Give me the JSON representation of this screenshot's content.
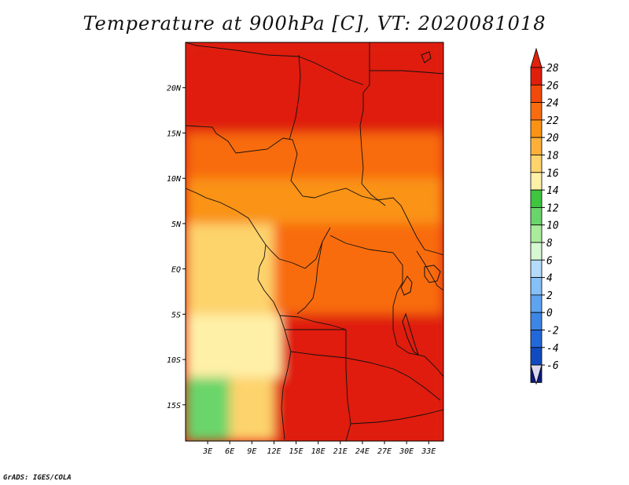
{
  "chart_data": {
    "type": "heatmap",
    "title": "Temperature at 900hPa [C], VT: 2020081018",
    "x_axis": {
      "ticks": [
        3,
        6,
        9,
        12,
        15,
        18,
        21,
        24,
        27,
        30,
        33
      ],
      "labels": [
        "3E",
        "6E",
        "9E",
        "12E",
        "15E",
        "18E",
        "21E",
        "24E",
        "27E",
        "30E",
        "33E"
      ],
      "range": [
        0,
        35
      ]
    },
    "y_axis": {
      "ticks": [
        20,
        15,
        10,
        5,
        0,
        -5,
        -10,
        -15
      ],
      "labels": [
        "20N",
        "15N",
        "10N",
        "5N",
        "EQ",
        "5S",
        "10S",
        "15S"
      ],
      "range": [
        -19,
        25
      ]
    },
    "colorbar": {
      "labels": [
        "28",
        "26",
        "24",
        "22",
        "20",
        "18",
        "16",
        "14",
        "12",
        "10",
        "8",
        "6",
        "4",
        "2",
        "0",
        "-2",
        "-4",
        "-6"
      ],
      "colors_top_to_bottom": [
        "#df1f0b",
        "#f24a0b",
        "#f86c10",
        "#fa9315",
        "#fcb03a",
        "#fdd36c",
        "#fff0a7",
        "#3fc53f",
        "#6ad56a",
        "#a9ec9a",
        "#d6f9d4",
        "#b4dcfa",
        "#85c0f6",
        "#5ea3f0",
        "#3d86e6",
        "#2368d8",
        "#124bc0",
        "#0b1b80"
      ],
      "over_color": "#e0220b",
      "under_color": "#dcd8f0"
    },
    "field": {
      "units": "C",
      "regions": [
        {
          "lat": [
            15,
            25
          ],
          "lon": [
            0,
            35
          ],
          "value": 27
        },
        {
          "lat": [
            10,
            15
          ],
          "lon": [
            0,
            35
          ],
          "value": 23
        },
        {
          "lat": [
            5,
            10
          ],
          "lon": [
            0,
            35
          ],
          "value": 21
        },
        {
          "lat": [
            -5,
            5
          ],
          "lon": [
            0,
            12
          ],
          "value": 17
        },
        {
          "lat": [
            -5,
            5
          ],
          "lon": [
            12,
            35
          ],
          "value": 23
        },
        {
          "lat": [
            -12,
            -5
          ],
          "lon": [
            0,
            13
          ],
          "value": 14
        },
        {
          "lat": [
            -12,
            -5
          ],
          "lon": [
            13,
            35
          ],
          "value": 26
        },
        {
          "lat": [
            -19,
            -12
          ],
          "lon": [
            0,
            6
          ],
          "value": 10
        },
        {
          "lat": [
            -19,
            -12
          ],
          "lon": [
            6,
            12
          ],
          "value": 16
        },
        {
          "lat": [
            -19,
            -12
          ],
          "lon": [
            12,
            35
          ],
          "value": 27
        }
      ]
    }
  },
  "credit": "GrADS: IGES/COLA"
}
